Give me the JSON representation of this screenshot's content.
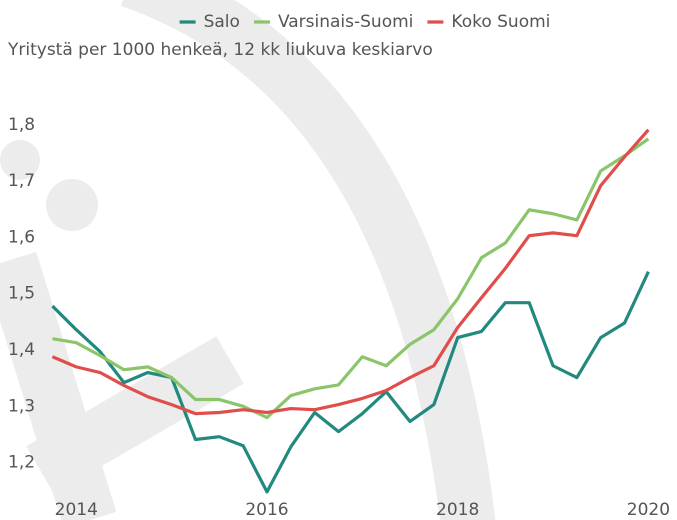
{
  "chart_data": {
    "type": "line",
    "subtitle": "Yritystä per 1000 henkeä, 12 kk liukuva keskiarvo",
    "x": [
      2013.75,
      2014,
      2014.25,
      2014.5,
      2014.75,
      2015,
      2015.25,
      2015.5,
      2015.75,
      2016,
      2016.25,
      2016.5,
      2016.75,
      2017,
      2017.25,
      2017.5,
      2017.75,
      2018,
      2018.25,
      2018.5,
      2018.75,
      2019,
      2019.25,
      2019.5,
      2019.75,
      2020
    ],
    "series": [
      {
        "name": "Salo",
        "color": "#21897e",
        "values": [
          1.478,
          1.436,
          1.397,
          1.342,
          1.36,
          1.351,
          1.241,
          1.246,
          1.23,
          1.148,
          1.228,
          1.289,
          1.255,
          1.287,
          1.326,
          1.273,
          1.303,
          1.422,
          1.433,
          1.484,
          1.484,
          1.372,
          1.351,
          1.422,
          1.448,
          1.539
        ]
      },
      {
        "name": "Varsinais-Suomi",
        "color": "#8bc56a",
        "values": [
          1.42,
          1.413,
          1.39,
          1.365,
          1.37,
          1.351,
          1.312,
          1.312,
          1.3,
          1.28,
          1.319,
          1.331,
          1.338,
          1.388,
          1.372,
          1.41,
          1.436,
          1.491,
          1.564,
          1.59,
          1.649,
          1.642,
          1.631,
          1.718,
          1.745,
          1.775
        ]
      },
      {
        "name": "Koko Suomi",
        "color": "#e04e4b",
        "values": [
          1.388,
          1.37,
          1.36,
          1.337,
          1.317,
          1.303,
          1.287,
          1.289,
          1.294,
          1.289,
          1.296,
          1.294,
          1.303,
          1.314,
          1.328,
          1.351,
          1.372,
          1.44,
          1.493,
          1.545,
          1.603,
          1.608,
          1.603,
          1.692,
          1.743,
          1.791
        ]
      }
    ],
    "xlim": [
      2013.2,
      2020.3
    ],
    "xticks": [
      2014,
      2016,
      2018,
      2020
    ],
    "ylim": [
      1.13,
      1.86
    ],
    "yticks": [
      {
        "value": 1.2,
        "label": "1,2"
      },
      {
        "value": 1.3,
        "label": "1,3"
      },
      {
        "value": 1.4,
        "label": "1,4"
      },
      {
        "value": 1.5,
        "label": "1,5"
      },
      {
        "value": 1.6,
        "label": "1,6"
      },
      {
        "value": 1.7,
        "label": "1,7"
      },
      {
        "value": 1.8,
        "label": "1,8"
      }
    ],
    "grid": false
  }
}
